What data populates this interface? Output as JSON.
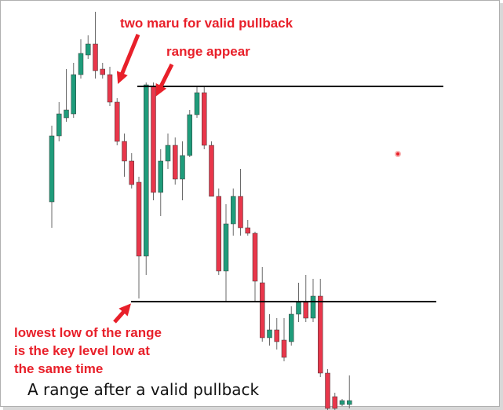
{
  "chart_data": {
    "type": "candlestick",
    "annotations": {
      "maru": "two maru for valid pullback",
      "range": "range appear",
      "low": [
        "lowest low of the range",
        "is the key level low at",
        "the same time"
      ],
      "caption": "A range after a valid pullback"
    },
    "open": [
      265,
      349,
      372,
      377,
      427,
      452,
      466,
      434,
      427,
      392,
      342,
      317,
      290,
      196,
      412,
      277,
      317,
      337,
      294,
      324,
      376,
      404,
      337,
      272,
      177,
      237,
      272,
      232,
      225,
      162,
      92,
      102,
      89,
      87,
      122,
      137,
      117,
      145,
      47,
      17,
      7,
      7
    ],
    "high": [
      362,
      392,
      434,
      442,
      472,
      477,
      507,
      442,
      437,
      397,
      352,
      327,
      297,
      417,
      417,
      332,
      352,
      347,
      342,
      382,
      412,
      412,
      342,
      282,
      262,
      282,
      307,
      242,
      227,
      182,
      122,
      117,
      117,
      132,
      162,
      172,
      167,
      167,
      52,
      22,
      14,
      44
    ],
    "low": [
      232,
      342,
      367,
      372,
      422,
      447,
      422,
      422,
      387,
      337,
      297,
      282,
      142,
      172,
      267,
      247,
      307,
      287,
      267,
      322,
      372,
      332,
      272,
      172,
      137,
      222,
      222,
      222,
      137,
      87,
      82,
      77,
      62,
      82,
      112,
      112,
      112,
      42,
      0,
      0,
      5,
      2
    ],
    "close": [
      349,
      377,
      382,
      427,
      454,
      466,
      432,
      427,
      392,
      342,
      317,
      287,
      196,
      414,
      277,
      317,
      337,
      294,
      324,
      376,
      404,
      337,
      272,
      177,
      237,
      272,
      232,
      225,
      164,
      92,
      102,
      87,
      67,
      122,
      137,
      117,
      145,
      47,
      2,
      2,
      12,
      12
    ],
    "up_color": "#1f9c7b",
    "down_color": "#e8374b",
    "levels": [
      412,
      138
    ],
    "level_color": "#000000",
    "ylim": [
      0,
      522
    ]
  }
}
